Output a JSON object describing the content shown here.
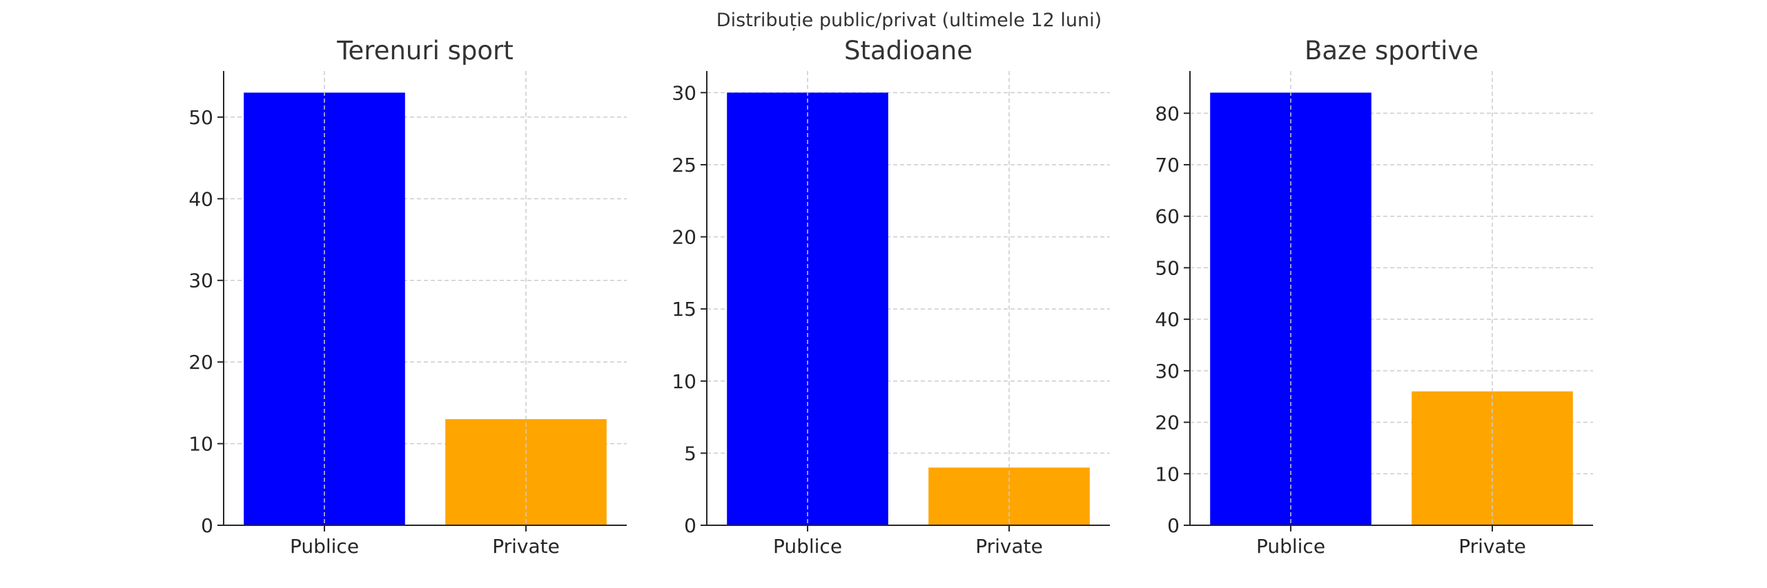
{
  "figure": {
    "title": "Distribuție public/privat (ultimele 12 luni)"
  },
  "chart_data": [
    {
      "type": "bar",
      "title": "Terenuri sport",
      "categories": [
        "Publice",
        "Private"
      ],
      "values": [
        53,
        13
      ],
      "colors": [
        "#0000ff",
        "#ffa500"
      ],
      "ylim": [
        0,
        55.65
      ],
      "yticks": [
        0,
        10,
        20,
        30,
        40,
        50
      ],
      "grid": true,
      "xlabel": "",
      "ylabel": ""
    },
    {
      "type": "bar",
      "title": "Stadioane",
      "categories": [
        "Publice",
        "Private"
      ],
      "values": [
        30,
        4
      ],
      "colors": [
        "#0000ff",
        "#ffa500"
      ],
      "ylim": [
        0,
        31.5
      ],
      "yticks": [
        0,
        5,
        10,
        15,
        20,
        25,
        30
      ],
      "grid": true,
      "xlabel": "",
      "ylabel": ""
    },
    {
      "type": "bar",
      "title": "Baze sportive",
      "categories": [
        "Publice",
        "Private"
      ],
      "values": [
        84,
        26
      ],
      "colors": [
        "#0000ff",
        "#ffa500"
      ],
      "ylim": [
        0,
        88.2
      ],
      "yticks": [
        0,
        10,
        20,
        30,
        40,
        50,
        60,
        70,
        80
      ],
      "grid": true,
      "xlabel": "",
      "ylabel": ""
    }
  ]
}
